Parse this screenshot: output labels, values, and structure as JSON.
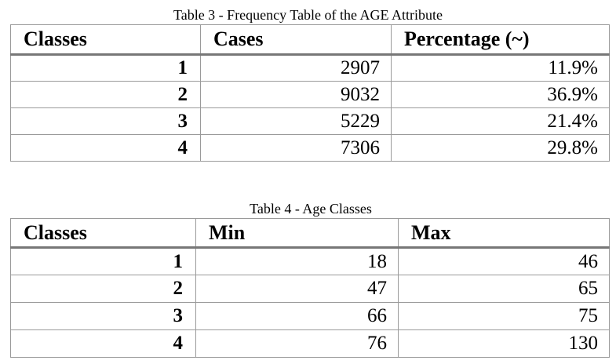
{
  "table3": {
    "caption": "Table 3 - Frequency Table of the AGE Attribute",
    "headers": [
      "Classes",
      "Cases",
      "Percentage (~)"
    ],
    "rows": [
      [
        "1",
        "2907",
        "11.9%"
      ],
      [
        "2",
        "9032",
        "36.9%"
      ],
      [
        "3",
        "5229",
        "21.4%"
      ],
      [
        "4",
        "7306",
        "29.8%"
      ]
    ]
  },
  "table4": {
    "caption": "Table 4 - Age Classes",
    "headers": [
      "Classes",
      "Min",
      "Max"
    ],
    "rows": [
      [
        "1",
        "18",
        "46"
      ],
      [
        "2",
        "47",
        "65"
      ],
      [
        "3",
        "66",
        "75"
      ],
      [
        "4",
        "76",
        "130"
      ]
    ]
  }
}
